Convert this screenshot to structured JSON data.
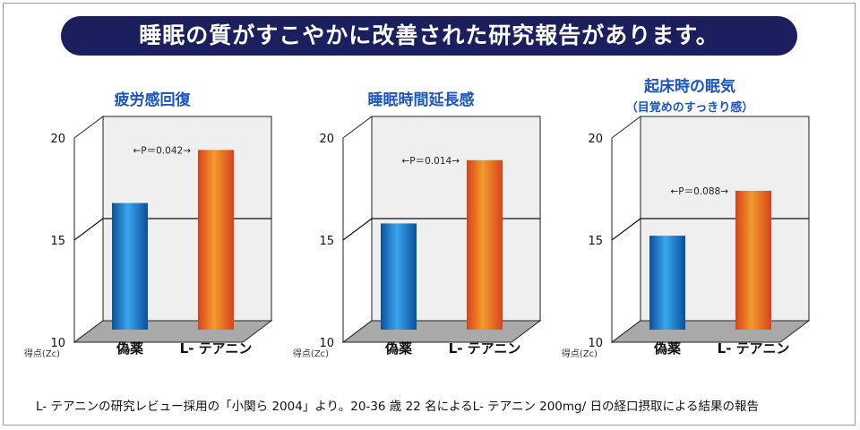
{
  "header": {
    "title": "睡眠の質がすこやかに改善された研究報告があります。"
  },
  "footnote": "L- テアニンの研究レビュー採用の「小関ら 2004」より。20-36 歳 22 名によるL- テアニン 200mg/ 日の経口摂取による結果の報告",
  "colors": {
    "banner": "#1b1f5e",
    "title": "#1a55c0",
    "placebo": "#1b7fd0",
    "theanine": "#e35a1f"
  },
  "chart_data": [
    {
      "type": "bar",
      "title": "疲労感回復",
      "subtitle": "",
      "categories": [
        "偽薬",
        "L- テアニン"
      ],
      "values": [
        16.2,
        18.8
      ],
      "ylim": [
        10,
        20
      ],
      "yticks": [
        "10",
        "15",
        "20"
      ],
      "ylabel": "得点(Zc)",
      "annotation": "←P＝0.042→"
    },
    {
      "type": "bar",
      "title": "睡眠時間延長感",
      "subtitle": "",
      "categories": [
        "偽薬",
        "L- テアニン"
      ],
      "values": [
        15.2,
        18.3
      ],
      "ylim": [
        10,
        20
      ],
      "yticks": [
        "10",
        "15",
        "20"
      ],
      "ylabel": "得点(Zc)",
      "annotation": "←P＝0.014→"
    },
    {
      "type": "bar",
      "title": "起床時の眠気",
      "subtitle": "（目覚めのすっきり感）",
      "categories": [
        "偽薬",
        "L- テアニン"
      ],
      "values": [
        14.6,
        16.8
      ],
      "ylim": [
        10,
        20
      ],
      "yticks": [
        "10",
        "15",
        "20"
      ],
      "ylabel": "得点(Zc)",
      "annotation": "←P＝0.088→"
    }
  ]
}
